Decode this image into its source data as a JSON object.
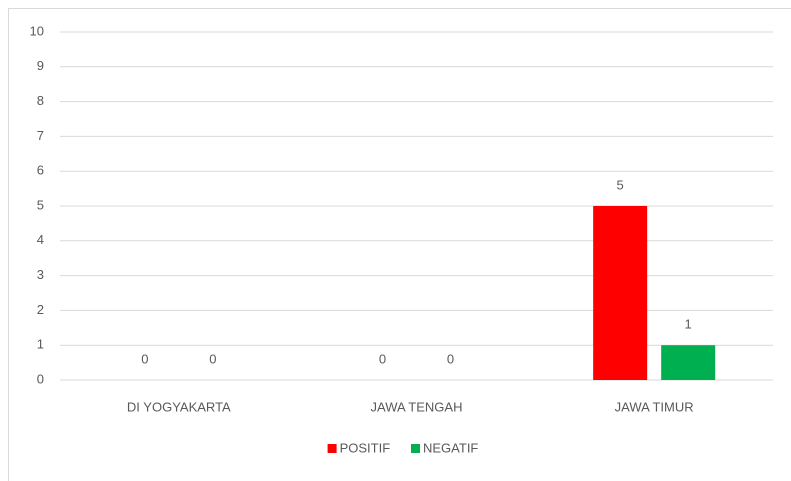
{
  "chart_data": {
    "type": "bar",
    "categories": [
      "DI YOGYAKARTA",
      "JAWA TENGAH",
      "JAWA TIMUR"
    ],
    "series": [
      {
        "name": "POSITIF",
        "color": "#ff0000",
        "values": [
          0,
          0,
          5
        ]
      },
      {
        "name": "NEGATIF",
        "color": "#00b050",
        "values": [
          0,
          0,
          1
        ]
      }
    ],
    "ylim": [
      0,
      10
    ],
    "yticks": [
      0,
      1,
      2,
      3,
      4,
      5,
      6,
      7,
      8,
      9,
      10
    ],
    "grid": true,
    "legend": "bottom",
    "data_labels": true
  }
}
